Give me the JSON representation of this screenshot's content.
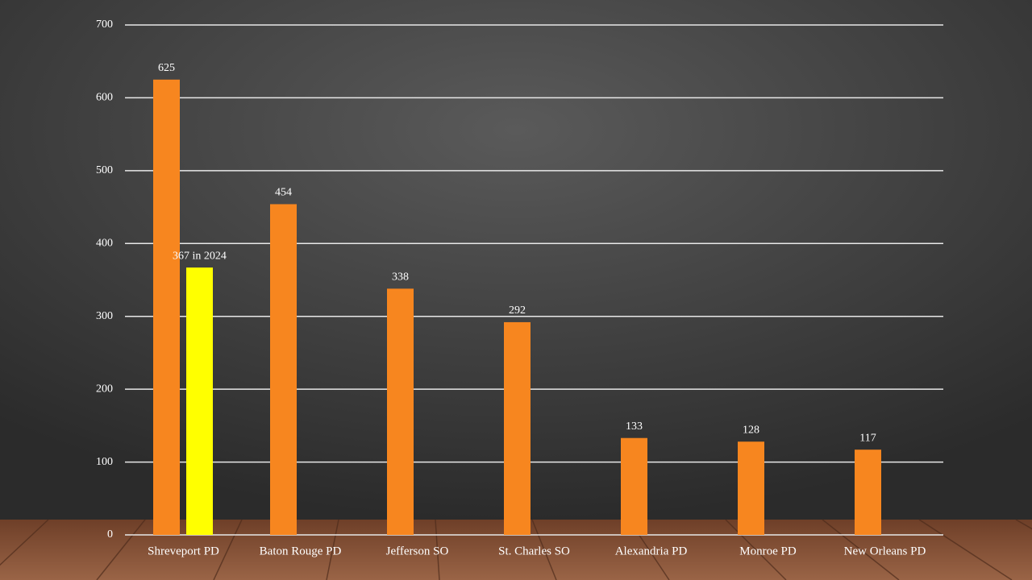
{
  "chart_data": {
    "type": "bar",
    "categories": [
      "Shreveport PD",
      "Baton Rouge PD",
      "Jefferson SO",
      "St. Charles SO",
      "Alexandria PD",
      "Monroe PD",
      "New Orleans PD"
    ],
    "series": [
      {
        "color": "#f7861f",
        "values": [
          625,
          454,
          338,
          292,
          133,
          128,
          117
        ]
      },
      {
        "color": "#ffff00",
        "values": [
          367,
          null,
          null,
          null,
          null,
          null,
          null
        ],
        "value_labels": [
          "367 in 2024",
          null,
          null,
          null,
          null,
          null,
          null
        ]
      }
    ],
    "ylim": [
      0,
      700
    ],
    "yticks": [
      0,
      100,
      200,
      300,
      400,
      500,
      600,
      700
    ],
    "grid": true
  }
}
